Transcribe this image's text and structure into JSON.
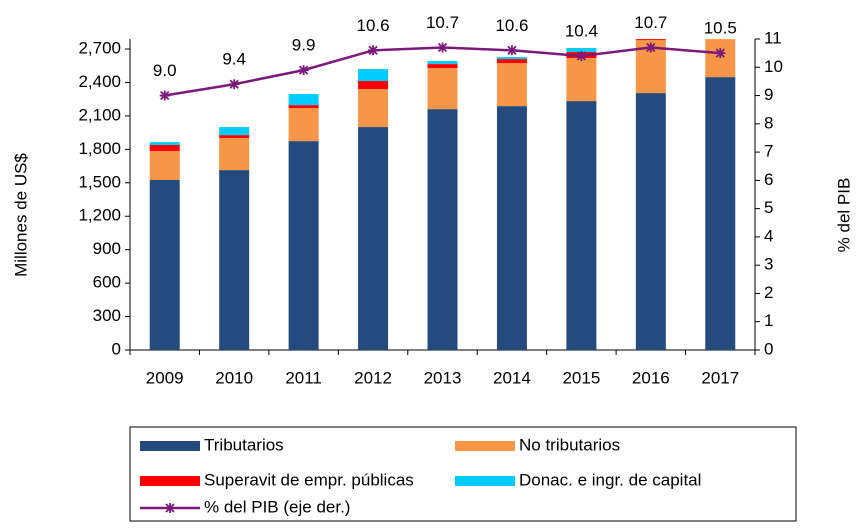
{
  "chart_data": {
    "type": "bar_line",
    "categories": [
      "2009",
      "2010",
      "2011",
      "2012",
      "2013",
      "2014",
      "2015",
      "2016",
      "2017"
    ],
    "series": [
      {
        "name": "Tributarios",
        "color": "#254b7e",
        "values": [
          1525,
          1614,
          1874,
          2000,
          2161,
          2188,
          2233,
          2305,
          2448
        ]
      },
      {
        "name": "No tributarios",
        "color": "#f79646",
        "values": [
          260,
          287,
          296,
          341,
          368,
          386,
          386,
          475,
          341
        ]
      },
      {
        "name": "Superavit de empr. públicas",
        "color": "#ff0000",
        "values": [
          54,
          27,
          27,
          72,
          36,
          36,
          54,
          9,
          0
        ]
      },
      {
        "name": "Donac. e ingr. de capital",
        "color": "#00ccff",
        "values": [
          26,
          72,
          99,
          107,
          27,
          18,
          36,
          0,
          0
        ]
      },
      {
        "name": "% del PIB (eje der.)",
        "color": "#7b1a7b",
        "axis": "y2",
        "type": "line",
        "values": [
          9.0,
          9.4,
          9.9,
          10.6,
          10.7,
          10.6,
          10.4,
          10.7,
          10.5
        ],
        "value_labels": [
          "9.0",
          "9.4",
          "9.9",
          "10.6",
          "10.7",
          "10.6",
          "10.4",
          "10.7",
          "10.5"
        ]
      }
    ],
    "ylabel": "Millones de US$",
    "y2label": "% del PIB",
    "ylim": [
      0,
      2790
    ],
    "yticks": [
      0,
      300,
      600,
      900,
      {
        "value": 1200,
        "label": "1,200"
      },
      {
        "value": 1500,
        "label": "1,500"
      },
      {
        "value": 1800,
        "label": "1,800"
      },
      {
        "value": 2100,
        "label": "2,100"
      },
      {
        "value": 2400,
        "label": "2,400"
      },
      {
        "value": 2700,
        "label": "2,700"
      }
    ],
    "y2lim": [
      0,
      11
    ],
    "y2ticks": [
      0,
      1,
      2,
      3,
      4,
      5,
      6,
      7,
      8,
      9,
      10,
      11
    ],
    "legend": "bottom"
  }
}
